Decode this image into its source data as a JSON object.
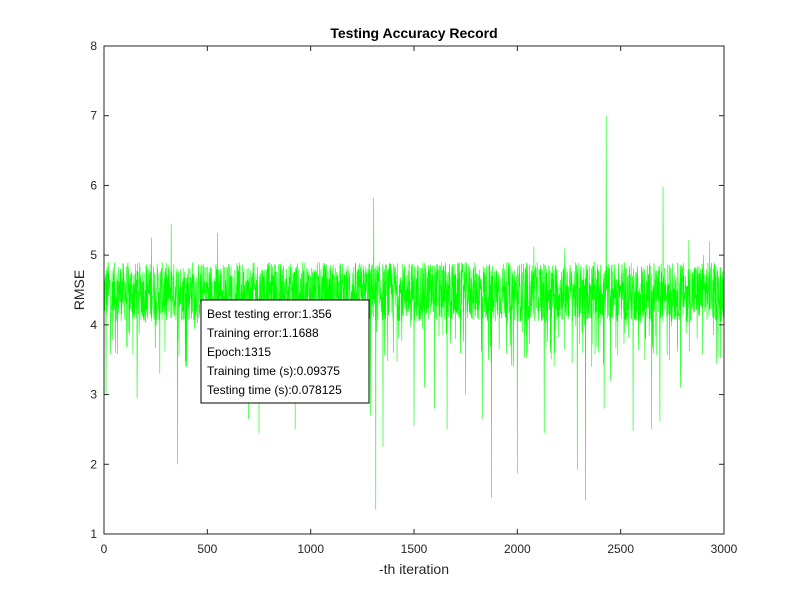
{
  "chart_data": {
    "type": "line",
    "title": "Testing Accuracy Record",
    "xlabel": "-th iteration",
    "ylabel": "RMSE",
    "xlim": [
      0,
      3000
    ],
    "ylim": [
      1,
      8
    ],
    "xticks": [
      0,
      500,
      1000,
      1500,
      2000,
      2500,
      3000
    ],
    "yticks": [
      1,
      2,
      3,
      4,
      5,
      6,
      7,
      8
    ],
    "grid": false,
    "legend": "none",
    "series": [
      {
        "color": "#00ff00",
        "points": [
          [
            0,
            4.6
          ],
          [
            10,
            3.0
          ],
          [
            20,
            4.9
          ],
          [
            35,
            4.2
          ],
          [
            55,
            3.6
          ],
          [
            80,
            4.8
          ],
          [
            120,
            3.9
          ],
          [
            160,
            2.95
          ],
          [
            200,
            4.5
          ],
          [
            230,
            5.25
          ],
          [
            270,
            3.3
          ],
          [
            300,
            4.7
          ],
          [
            325,
            5.45
          ],
          [
            355,
            2.0
          ],
          [
            380,
            4.2
          ],
          [
            400,
            3.4
          ],
          [
            430,
            4.9
          ],
          [
            480,
            3.7
          ],
          [
            550,
            5.32
          ],
          [
            600,
            4.1
          ],
          [
            670,
            3.2
          ],
          [
            700,
            2.65
          ],
          [
            750,
            2.45
          ],
          [
            800,
            4.0
          ],
          [
            860,
            3.1
          ],
          [
            900,
            4.7
          ],
          [
            925,
            2.5
          ],
          [
            980,
            3.5
          ],
          [
            1050,
            4.8
          ],
          [
            1100,
            3.2
          ],
          [
            1150,
            4.1
          ],
          [
            1200,
            3.6
          ],
          [
            1260,
            4.3
          ],
          [
            1290,
            2.7
          ],
          [
            1305,
            5.82
          ],
          [
            1315,
            1.35
          ],
          [
            1350,
            2.25
          ],
          [
            1400,
            3.6
          ],
          [
            1450,
            4.8
          ],
          [
            1500,
            2.55
          ],
          [
            1550,
            3.1
          ],
          [
            1600,
            2.8
          ],
          [
            1660,
            2.5
          ],
          [
            1700,
            3.8
          ],
          [
            1750,
            3.0
          ],
          [
            1800,
            4.5
          ],
          [
            1830,
            2.65
          ],
          [
            1860,
            3.5
          ],
          [
            1875,
            1.52
          ],
          [
            1920,
            4.2
          ],
          [
            1980,
            3.4
          ],
          [
            2000,
            1.87
          ],
          [
            2040,
            4.0
          ],
          [
            2080,
            5.12
          ],
          [
            2100,
            4.4
          ],
          [
            2130,
            2.45
          ],
          [
            2180,
            3.6
          ],
          [
            2230,
            5.1
          ],
          [
            2290,
            1.92
          ],
          [
            2330,
            1.48
          ],
          [
            2360,
            3.4
          ],
          [
            2400,
            4.0
          ],
          [
            2420,
            2.8
          ],
          [
            2430,
            7.0
          ],
          [
            2450,
            3.2
          ],
          [
            2500,
            4.5
          ],
          [
            2560,
            2.48
          ],
          [
            2620,
            3.8
          ],
          [
            2650,
            2.5
          ],
          [
            2690,
            2.62
          ],
          [
            2705,
            5.98
          ],
          [
            2740,
            4.2
          ],
          [
            2790,
            3.1
          ],
          [
            2830,
            5.22
          ],
          [
            2870,
            3.8
          ],
          [
            2900,
            5.0
          ],
          [
            2930,
            5.2
          ],
          [
            2960,
            4.3
          ],
          [
            3000,
            3.7
          ]
        ]
      }
    ],
    "annotation_box": {
      "lines": [
        "Best testing error:1.356",
        "Training error:1.1688",
        "Epoch:1315",
        "Training time (s):0.09375",
        "Testing time (s):0.078125"
      ]
    }
  }
}
